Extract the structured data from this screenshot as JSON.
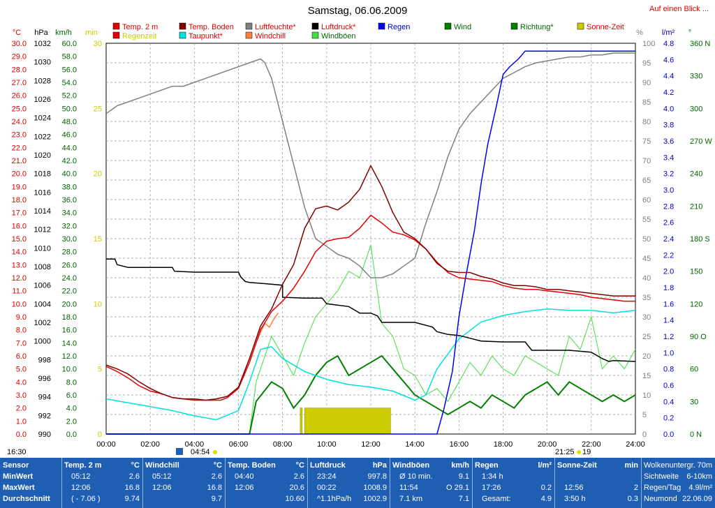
{
  "title": "Samstag, 06.06.2009",
  "top_link": "Auf einen Blick ...",
  "legend": [
    {
      "label": "Temp. 2 m",
      "color": "#e00000"
    },
    {
      "label": "Temp. Boden",
      "color": "#800000"
    },
    {
      "label": "Luftfeuchte*",
      "color": "#808080"
    },
    {
      "label": "Luftdruck*",
      "color": "#000000"
    },
    {
      "label": "Regen",
      "color": "#0000ff",
      "text_color": "#0000cc"
    },
    {
      "label": "Wind",
      "color": "#008000",
      "text_color": "#006400"
    },
    {
      "label": "Richtung*",
      "color": "#008000",
      "text_color": "#006400"
    },
    {
      "label": "Sonne-Zeit",
      "color": "#cccc00"
    },
    {
      "label": "Regenzeit",
      "color": "#e00000",
      "text_color": "#cccc00"
    },
    {
      "label": "Taupunkt*",
      "color": "#00e0e0",
      "text_color": "#e00000"
    },
    {
      "label": "Windchill",
      "color": "#ff8040",
      "text_color": "#e00000"
    },
    {
      "label": "Windböen",
      "color": "#40e040",
      "text_color": "#006400"
    }
  ],
  "axis_units": {
    "temp": "°C",
    "pressure": "hPa",
    "wind": "km/h",
    "minutes": "min",
    "humidity": "%",
    "rain": "l/m²",
    "direction": "°"
  },
  "axes": {
    "temp": [
      "30.0",
      "29.0",
      "28.0",
      "27.0",
      "26.0",
      "25.0",
      "24.0",
      "23.0",
      "22.0",
      "21.0",
      "20.0",
      "19.0",
      "18.0",
      "17.0",
      "16.0",
      "15.0",
      "14.0",
      "13.0",
      "12.0",
      "11.0",
      "10.0",
      "9.0",
      "8.0",
      "7.0",
      "6.0",
      "5.0",
      "4.0",
      "3.0",
      "2.0",
      "1.0",
      "0.0"
    ],
    "pressure": [
      "1032",
      "1030",
      "1028",
      "1026",
      "1024",
      "1022",
      "1020",
      "1018",
      "1016",
      "1014",
      "1012",
      "1010",
      "1008",
      "1006",
      "1004",
      "1002",
      "1000",
      "998",
      "996",
      "994",
      "992",
      "990"
    ],
    "wind": [
      "60.0",
      "58.0",
      "56.0",
      "54.0",
      "52.0",
      "50.0",
      "48.0",
      "46.0",
      "44.0",
      "42.0",
      "40.0",
      "38.0",
      "36.0",
      "34.0",
      "32.0",
      "30.0",
      "28.0",
      "26.0",
      "24.0",
      "22.0",
      "20.0",
      "18.0",
      "16.0",
      "14.0",
      "12.0",
      "10.0",
      "8.0",
      "6.0",
      "4.0",
      "2.0",
      "0.0"
    ],
    "minutes": [
      "30",
      "25",
      "20",
      "15",
      "10",
      "5",
      "0"
    ],
    "humidity": [
      "100",
      "95",
      "90",
      "85",
      "80",
      "75",
      "70",
      "65",
      "60",
      "55",
      "50",
      "45",
      "40",
      "35",
      "30",
      "25",
      "20",
      "15",
      "10",
      "5",
      "0"
    ],
    "rain": [
      "4.8",
      "4.6",
      "4.4",
      "4.2",
      "4.0",
      "3.8",
      "3.6",
      "3.4",
      "3.2",
      "3.0",
      "2.8",
      "2.6",
      "2.4",
      "2.2",
      "2.0",
      "1.8",
      "1.6",
      "1.4",
      "1.2",
      "1.0",
      "0.8",
      "0.6",
      "0.4",
      "0.2",
      "0.0"
    ],
    "direction": [
      "360 N",
      "330",
      "300",
      "270 W",
      "240",
      "210",
      "180 S",
      "150",
      "120",
      "90 O",
      "60",
      "30",
      "0 N"
    ],
    "time": [
      "00:00",
      "02:00",
      "04:00",
      "06:00",
      "08:00",
      "10:00",
      "12:00",
      "14:00",
      "16:00",
      "18:00",
      "20:00",
      "22:00",
      "24:00"
    ]
  },
  "sun_markers": {
    "left_time": "16:30",
    "sunrise": "04:54",
    "sunset": "21:25",
    "sunset_suffix": "19"
  },
  "chart_data": {
    "type": "line",
    "title": "Samstag, 06.06.2009",
    "x_unit": "hours",
    "xlim": [
      0,
      24
    ],
    "series": [
      {
        "name": "Temp. 2 m",
        "axis": "temp",
        "color": "#e00000",
        "x": [
          0,
          0.5,
          1,
          1.5,
          2,
          2.5,
          3,
          3.5,
          4,
          4.5,
          5,
          5.2,
          5.5,
          6,
          6.5,
          7,
          7.5,
          8,
          8.5,
          9,
          9.5,
          10,
          10.5,
          11,
          11.5,
          12,
          12.5,
          13,
          13.5,
          14,
          14.5,
          15,
          15.5,
          16,
          16.5,
          17,
          17.5,
          18,
          18.5,
          19,
          19.5,
          20,
          20.5,
          21,
          21.5,
          22,
          22.5,
          23,
          23.5,
          24
        ],
        "y": [
          5.2,
          4.8,
          4.3,
          3.7,
          3.3,
          3.1,
          2.8,
          2.7,
          2.6,
          2.6,
          2.6,
          2.6,
          2.8,
          3.5,
          5.5,
          8.0,
          9.4,
          10.2,
          11.2,
          12.5,
          14.0,
          14.8,
          15.0,
          15.1,
          15.8,
          16.8,
          16.2,
          15.5,
          15.3,
          14.9,
          14.2,
          13.2,
          12.4,
          12.0,
          11.9,
          11.8,
          11.7,
          11.4,
          11.2,
          11.1,
          11.1,
          11.0,
          10.9,
          10.8,
          10.7,
          10.5,
          10.4,
          10.3,
          10.2,
          10.2
        ]
      },
      {
        "name": "Temp. Boden",
        "axis": "temp",
        "color": "#800000",
        "x": [
          0,
          0.5,
          1,
          1.5,
          2,
          2.5,
          3,
          3.5,
          4,
          4.5,
          5,
          5.5,
          6,
          6.5,
          7,
          7.5,
          8,
          8.5,
          9,
          9.5,
          10,
          10.5,
          11,
          11.5,
          12,
          12.5,
          13,
          13.5,
          14,
          14.5,
          15,
          15.5,
          16,
          16.5,
          17,
          17.5,
          18,
          18.5,
          19,
          19.5,
          20,
          20.5,
          21,
          21.5,
          22,
          22.5,
          23,
          23.5,
          24
        ],
        "y": [
          5.3,
          5.0,
          4.6,
          4.0,
          3.5,
          3.1,
          2.8,
          2.7,
          2.7,
          2.6,
          2.7,
          2.9,
          3.6,
          5.8,
          8.3,
          9.6,
          11.5,
          13.0,
          15.8,
          17.3,
          17.5,
          17.2,
          17.8,
          18.8,
          20.6,
          19.0,
          17.0,
          15.5,
          15.0,
          14.2,
          13.1,
          12.5,
          12.4,
          12.4,
          12.1,
          11.9,
          11.6,
          11.4,
          11.4,
          11.3,
          11.1,
          11.1,
          11.0,
          10.9,
          10.8,
          10.7,
          10.6,
          10.6,
          10.6
        ]
      },
      {
        "name": "Luftfeuchte*",
        "axis": "humidity",
        "color": "#808080",
        "x": [
          0,
          0.5,
          1,
          1.5,
          2,
          2.5,
          3,
          3.5,
          4,
          4.5,
          5,
          5.5,
          6,
          6.5,
          7,
          7.2,
          7.5,
          8,
          8.5,
          9,
          9.5,
          10,
          10.5,
          11,
          11.5,
          12,
          12.5,
          13,
          13.5,
          14,
          14.5,
          15,
          15.5,
          16,
          16.5,
          17,
          17.5,
          18,
          18.5,
          19,
          19.5,
          20,
          20.5,
          21,
          21.5,
          22,
          22.5,
          23,
          23.5,
          24
        ],
        "y": [
          82,
          84,
          85,
          86,
          87,
          88,
          89,
          89,
          90,
          91,
          92,
          93,
          94,
          95,
          96,
          95,
          91,
          80,
          69,
          58,
          50,
          48,
          46,
          45,
          43,
          40,
          40,
          41,
          43,
          45,
          54,
          62,
          71,
          78,
          82,
          85,
          88,
          91,
          92.5,
          94,
          95,
          95.5,
          96,
          96.5,
          96.5,
          97,
          97,
          97.5,
          97.5,
          97.5
        ]
      },
      {
        "name": "Luftdruck*",
        "axis": "pressure",
        "color": "#000000",
        "x": [
          0,
          0.4,
          0.5,
          1,
          2,
          3,
          3.1,
          4,
          5,
          6,
          6.1,
          6.3,
          6.5,
          7,
          8,
          8,
          9,
          9.8,
          10,
          11,
          11.5,
          12,
          12.3,
          12.5,
          13,
          14,
          14.8,
          15,
          15.5,
          16,
          17,
          18,
          19,
          19.3,
          20,
          21,
          22,
          22.5,
          22.8,
          23,
          24
        ],
        "y": [
          1008.8,
          1008.8,
          1008.2,
          1007.9,
          1007.9,
          1007.9,
          1007.5,
          1007.4,
          1007.4,
          1007.4,
          1006.9,
          1006.4,
          1006.3,
          1006.2,
          1006.0,
          1004.7,
          1004.6,
          1004.6,
          1004,
          1003.7,
          1003.0,
          1003.0,
          1002.7,
          1002.0,
          1002.0,
          1002.0,
          1001.5,
          1001.0,
          1000.7,
          1000.6,
          1000.0,
          999.9,
          999.9,
          999.0,
          999.0,
          999.0,
          998.8,
          998.1,
          997.8,
          997.9,
          997.8
        ]
      },
      {
        "name": "Regen",
        "axis": "rain",
        "color": "#0000ff",
        "x": [
          0,
          15.0,
          15.3,
          15.7,
          16.0,
          16.3,
          16.7,
          17.0,
          17.3,
          17.7,
          18.0,
          18.3,
          18.7,
          19.0,
          20,
          24
        ],
        "y": [
          0,
          0,
          0.3,
          0.8,
          1.5,
          2.0,
          2.6,
          3.2,
          3.7,
          4.2,
          4.6,
          4.7,
          4.8,
          4.9,
          4.9,
          4.9
        ]
      },
      {
        "name": "Taupunkt*",
        "axis": "temp",
        "color": "#00e0e0",
        "x": [
          0,
          1,
          2,
          3,
          4,
          5,
          6,
          6.5,
          7,
          7.5,
          8,
          9,
          10,
          11,
          12,
          13,
          14,
          14.5,
          15,
          16,
          17,
          18,
          19,
          20,
          21,
          22,
          23,
          24
        ],
        "y": [
          2.7,
          2.4,
          2.1,
          1.8,
          1.4,
          1.1,
          1.8,
          4.0,
          6.5,
          6.7,
          5.8,
          4.8,
          4.2,
          3.8,
          3.6,
          3.3,
          2.6,
          3.0,
          5.0,
          7.3,
          8.6,
          9.1,
          9.4,
          9.6,
          9.5,
          9.5,
          9.3,
          9.5
        ]
      },
      {
        "name": "Windchill",
        "axis": "temp",
        "color": "#ff8040",
        "x": [
          6.8,
          7,
          7.2,
          7.4,
          7.6,
          7.8
        ],
        "y": [
          7.0,
          7.8,
          8.5,
          8.2,
          8.8,
          9.3
        ]
      },
      {
        "name": "Wind",
        "axis": "wind",
        "color": "#008000",
        "x": [
          0,
          6.5,
          6.8,
          7.5,
          8,
          8.5,
          9,
          9.5,
          10,
          10.5,
          11,
          11.5,
          12,
          12.5,
          13,
          13.5,
          14,
          14.5,
          15,
          15.5,
          16,
          16.5,
          17,
          17.5,
          18,
          18.5,
          19,
          19.5,
          20,
          20.5,
          21,
          21.5,
          22,
          22.5,
          23,
          23.5,
          24
        ],
        "y": [
          0,
          0,
          5,
          8,
          7,
          4,
          6,
          9,
          11,
          12,
          9,
          10,
          11,
          12,
          10,
          8,
          6,
          5,
          4,
          3,
          4,
          5,
          4,
          6,
          5,
          4,
          6,
          7,
          8,
          6,
          8,
          7,
          6,
          5,
          6,
          5,
          6
        ]
      },
      {
        "name": "Windböen",
        "axis": "wind",
        "color": "#40e040",
        "x": [
          0,
          6.5,
          6.8,
          7.5,
          8,
          8.5,
          9,
          9.5,
          10,
          10.5,
          11,
          11.5,
          12,
          12.5,
          13,
          13.5,
          14,
          14.5,
          15,
          15.5,
          16,
          16.5,
          17,
          17.5,
          18,
          18.5,
          19,
          19.5,
          20,
          20.5,
          21,
          21.5,
          22,
          22.5,
          23,
          23.5,
          24
        ],
        "y": [
          0,
          0,
          8,
          15,
          12,
          9,
          14,
          18,
          20,
          22,
          25,
          24,
          29,
          17,
          15,
          10,
          9,
          6,
          7,
          5,
          8,
          11,
          9,
          12,
          10,
          9,
          12,
          11,
          10,
          9,
          15,
          13,
          18,
          10,
          12,
          10,
          13
        ]
      },
      {
        "name": "Sonne-Zeit",
        "axis": "minutes",
        "type": "bar",
        "color": "#cccc00",
        "x": [
          8.8,
          9.0,
          12.9
        ],
        "y": [
          2,
          2,
          2
        ]
      }
    ]
  },
  "footer": {
    "sensor": {
      "title": "Sensor",
      "rows": [
        "MinWert",
        "MaxWert",
        "Durchschnitt"
      ]
    },
    "temp2m": {
      "title": "Temp. 2 m",
      "unit": "°C",
      "r1": [
        "05:12",
        "2.6"
      ],
      "r2": [
        "12:06",
        "16.8"
      ],
      "r3": [
        "( - 7.06 )",
        "9.74"
      ]
    },
    "windchill": {
      "title": "Windchill",
      "unit": "°C",
      "r1": [
        "05:12",
        "2.6"
      ],
      "r2": [
        "12:06",
        "16.8"
      ],
      "r3": [
        "",
        "9.7"
      ]
    },
    "boden": {
      "title": "Temp. Boden",
      "unit": "°C",
      "r1": [
        "04:40",
        "2.6"
      ],
      "r2": [
        "12:06",
        "20.6"
      ],
      "r3": [
        "",
        "10.60"
      ]
    },
    "druck": {
      "title": "Luftdruck",
      "unit": "hPa",
      "r1": [
        "23:24",
        "997.8"
      ],
      "r2": [
        "00:22",
        "1008.9"
      ],
      "r3": [
        "^1.1hPa/h",
        "1002.9"
      ]
    },
    "boeen": {
      "title": "Windböen",
      "unit": "km/h",
      "r1": [
        "Ø 10 min.",
        "9.1"
      ],
      "r2": [
        "11:54",
        "O 29.1"
      ],
      "r3": [
        "7.1 km",
        "7.1"
      ]
    },
    "regen": {
      "title": "Regen",
      "unit": "l/m²",
      "r1": [
        "1:34 h",
        ""
      ],
      "r2": [
        "17:26",
        "0.2"
      ],
      "r3": [
        "Gesamt:",
        "4.9"
      ]
    },
    "sonne": {
      "title": "Sonne-Zeit",
      "unit": "min",
      "r1": [
        "",
        ""
      ],
      "r2": [
        "12:56",
        "2"
      ],
      "r3": [
        "3:50 h",
        "0.3"
      ]
    },
    "extra": {
      "r0": [
        "Wolkenuntergr.",
        "70m"
      ],
      "r1": [
        "Sichtweite",
        "6-10km"
      ],
      "r2": [
        "Regen/Tag",
        "4.9l/m²"
      ],
      "r3": [
        "Neumond",
        "22.06.09"
      ]
    }
  }
}
